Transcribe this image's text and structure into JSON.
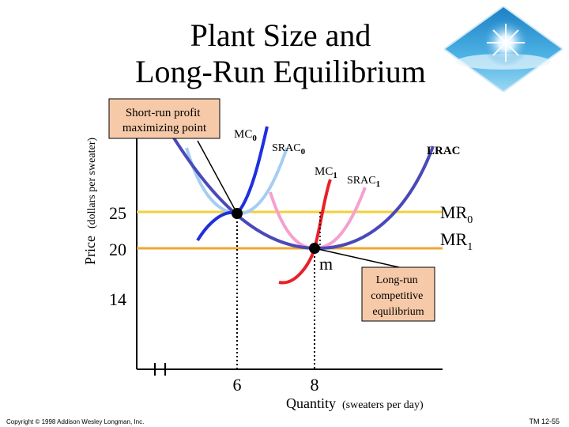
{
  "slide": {
    "title_line1": "Plant Size and",
    "title_line2": "Long-Run Equilibrium",
    "copyright": "Copyright © 1998 Addison Wesley Longman, Inc.",
    "tm": "TM 12-55"
  },
  "colors": {
    "mr0": "#f2d13b",
    "mr1": "#f0a830",
    "mc0": "#1f2fe0",
    "srac0": "#a6cdf2",
    "mc1": "#e8202a",
    "srac1": "#f5a0cf",
    "lrac": "#4a49b8",
    "callout_fill": "#f6c9a8"
  },
  "chart_data": {
    "type": "line",
    "ylabel_main": "Price",
    "ylabel_units": "(dollars per sweater)",
    "xlabel_main": "Quantity",
    "xlabel_units": "(sweaters per day)",
    "y_ticks": [
      "25",
      "20",
      "14"
    ],
    "x_ticks": [
      "6",
      "8"
    ],
    "series": [
      {
        "name": "MR",
        "sub": "0",
        "value": 25
      },
      {
        "name": "MR",
        "sub": "1",
        "value": 20
      },
      {
        "name": "MC",
        "sub": "0"
      },
      {
        "name": "SRAC",
        "sub": "0"
      },
      {
        "name": "MC",
        "sub": "1"
      },
      {
        "name": "SRAC",
        "sub": "1"
      },
      {
        "name": "LRAC",
        "sub": ""
      }
    ],
    "points": [
      {
        "label": "",
        "x": 6,
        "y": 25
      },
      {
        "label": "m",
        "x": 8,
        "y": 20
      }
    ],
    "annotations": [
      {
        "lines": [
          "Short-run profit",
          "maximizing point"
        ]
      },
      {
        "lines": [
          "Long-run",
          "competitive",
          "equilibrium"
        ]
      }
    ]
  }
}
